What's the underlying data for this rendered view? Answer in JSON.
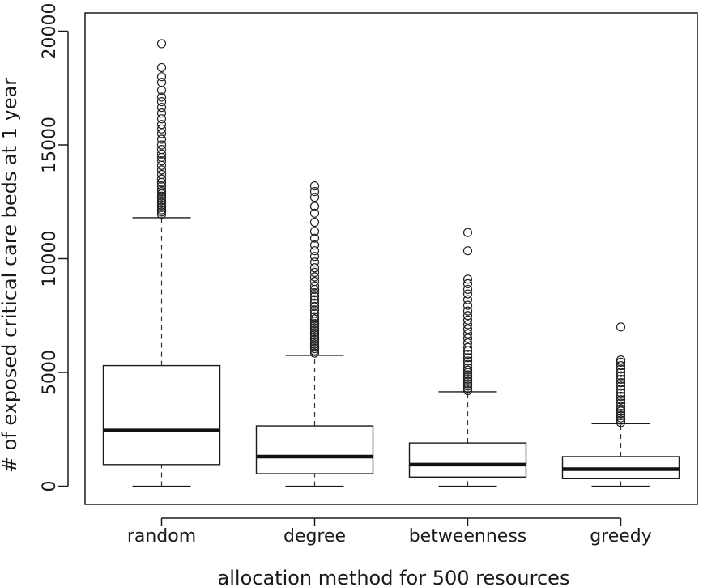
{
  "chart_data": {
    "type": "boxplot",
    "title": "",
    "xlabel": "allocation method for 500 resources",
    "ylabel": "# of exposed critical care beds at 1 year",
    "ylim": [
      -800,
      20800
    ],
    "yticks": [
      0,
      5000,
      10000,
      15000,
      20000
    ],
    "grid": false,
    "categories": [
      "random",
      "degree",
      "betweenness",
      "greedy"
    ],
    "series": [
      {
        "category": "random",
        "whisker_low": 0,
        "q1": 950,
        "median": 2450,
        "q3": 5300,
        "whisker_high": 11800,
        "outliers": [
          11950,
          12050,
          12150,
          12250,
          12350,
          12450,
          12550,
          12650,
          12750,
          12850,
          12950,
          13050,
          13200,
          13350,
          13500,
          13700,
          13900,
          14100,
          14300,
          14450,
          14600,
          14800,
          15000,
          15250,
          15500,
          15700,
          15900,
          16150,
          16400,
          16650,
          16900,
          17100,
          17400,
          17750,
          18000,
          18400,
          19450
        ]
      },
      {
        "category": "degree",
        "whisker_low": 0,
        "q1": 550,
        "median": 1300,
        "q3": 2650,
        "whisker_high": 5750,
        "outliers": [
          5850,
          5950,
          6050,
          6150,
          6250,
          6350,
          6450,
          6550,
          6650,
          6750,
          6850,
          6950,
          7050,
          7150,
          7250,
          7350,
          7450,
          7600,
          7750,
          7900,
          8050,
          8200,
          8350,
          8500,
          8650,
          8800,
          9000,
          9200,
          9400,
          9600,
          9850,
          10100,
          10350,
          10600,
          10900,
          11200,
          11600,
          12000,
          12300,
          12700,
          12950,
          13200
        ]
      },
      {
        "category": "betweenness",
        "whisker_low": 0,
        "q1": 400,
        "median": 950,
        "q3": 1900,
        "whisker_high": 4150,
        "outliers": [
          4200,
          4300,
          4400,
          4500,
          4600,
          4700,
          4800,
          4900,
          5000,
          5100,
          5200,
          5350,
          5500,
          5650,
          5800,
          5950,
          6100,
          6300,
          6500,
          6700,
          6900,
          7100,
          7300,
          7500,
          7700,
          7950,
          8200,
          8450,
          8650,
          8900,
          9100,
          10350,
          11150
        ]
      },
      {
        "category": "greedy",
        "whisker_low": 0,
        "q1": 350,
        "median": 750,
        "q3": 1300,
        "whisker_high": 2750,
        "outliers": [
          2800,
          2900,
          3000,
          3100,
          3200,
          3300,
          3400,
          3500,
          3650,
          3800,
          3950,
          4100,
          4250,
          4400,
          4550,
          4700,
          4850,
          5000,
          5150,
          5300,
          5450,
          5550,
          7000
        ]
      }
    ]
  }
}
